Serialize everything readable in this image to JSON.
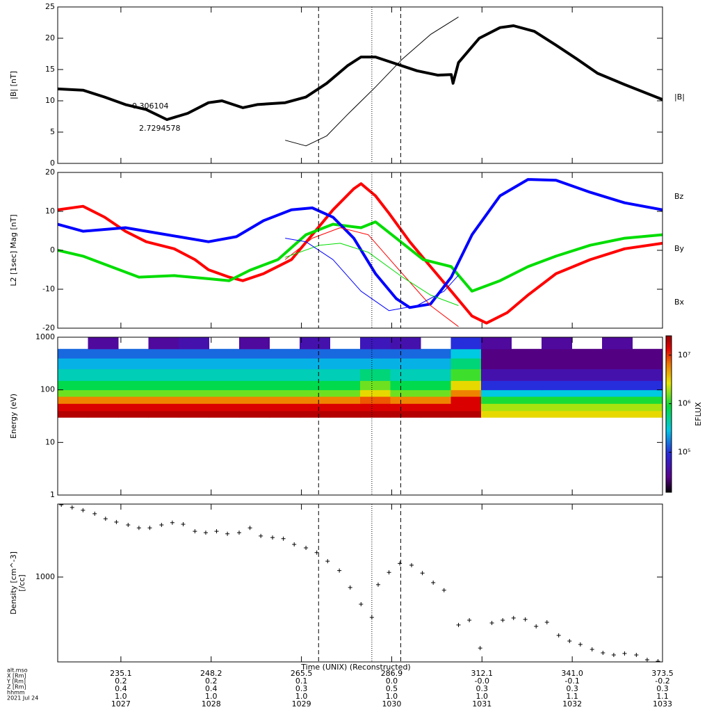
{
  "x_axis": {
    "xlim": [
      1026.3,
      1033.0
    ],
    "xticks": [
      1027,
      1028,
      1029,
      1030,
      1031,
      1032,
      1033
    ],
    "xlabel": "Time (UNIX) (Reconstructed)",
    "date": "2021 Jul 24",
    "tick_row_label": "hhmm",
    "rows": [
      {
        "label": "alt.mso",
        "values": [
          "235.1",
          "248.2",
          "265.5",
          "286.9",
          "312.1",
          "341.0",
          "373.5"
        ]
      },
      {
        "label": "X [Rm]",
        "values": [
          "0.2",
          "0.2",
          "0.1",
          "0.0",
          "-0.0",
          "-0.1",
          "-0.2"
        ]
      },
      {
        "label": "Y [Rm]",
        "values": [
          "0.4",
          "0.4",
          "0.3",
          "0.5",
          "0.3",
          "0.3",
          "0.3"
        ]
      },
      {
        "label": "Z [Rm]",
        "values": [
          "1.0",
          "1.0",
          "1.0",
          "1.0",
          "1.0",
          "1.1",
          "1.1"
        ]
      }
    ],
    "vlines": [
      {
        "x": 1029.19,
        "style": "dashed"
      },
      {
        "x": 1029.78,
        "style": "dotted"
      },
      {
        "x": 1030.1,
        "style": "dashed"
      }
    ]
  },
  "chart_data": [
    {
      "type": "line",
      "ylabel": "|B| [nT]",
      "ylim": [
        0,
        25
      ],
      "yticks": [
        0,
        5,
        10,
        15,
        20,
        25
      ],
      "annotations": [
        "0.306104",
        "2.7294578"
      ],
      "series": [
        {
          "name": "|B|",
          "color": "#000000",
          "style": "thick",
          "x": [
            1026.3,
            1026.58,
            1026.82,
            1027.05,
            1027.28,
            1027.51,
            1027.74,
            1027.97,
            1028.12,
            1028.35,
            1028.51,
            1028.82,
            1029.05,
            1029.28,
            1029.51,
            1029.66,
            1029.82,
            1030.05,
            1030.28,
            1030.51,
            1030.66,
            1030.68,
            1030.74,
            1030.97,
            1031.2,
            1031.35,
            1031.58,
            1031.82,
            1032.05,
            1032.28,
            1032.58,
            1033.0
          ],
          "values": [
            11.9,
            11.7,
            10.6,
            9.4,
            8.6,
            7.0,
            8.0,
            9.7,
            10.0,
            8.9,
            9.4,
            9.7,
            10.6,
            12.8,
            15.6,
            17.0,
            17.0,
            15.9,
            14.8,
            14.1,
            14.2,
            12.8,
            16.1,
            20.0,
            21.7,
            22.0,
            21.1,
            18.9,
            16.7,
            14.4,
            12.6,
            10.2
          ]
        },
        {
          "color": "#000000",
          "style": "thin",
          "x": [
            1028.82,
            1029.05,
            1029.28,
            1029.51,
            1029.82,
            1030.12,
            1030.43,
            1030.74
          ],
          "values": [
            3.7,
            2.8,
            4.4,
            7.8,
            12.2,
            16.7,
            20.6,
            23.4
          ]
        }
      ]
    },
    {
      "type": "line",
      "ylabel": "L2 [1sec] Mag [nT]",
      "ylim": [
        -20,
        20
      ],
      "yticks": [
        -20,
        -10,
        0,
        10,
        20
      ],
      "series": [
        {
          "name": "Bz",
          "color": "#ff0000",
          "style": "thick",
          "x": [
            1026.3,
            1026.58,
            1026.82,
            1027.05,
            1027.28,
            1027.59,
            1027.82,
            1027.97,
            1028.2,
            1028.35,
            1028.58,
            1028.89,
            1029.12,
            1029.35,
            1029.58,
            1029.66,
            1029.82,
            1029.97,
            1030.2,
            1030.43,
            1030.66,
            1030.89,
            1031.05,
            1031.28,
            1031.51,
            1031.82,
            1032.2,
            1032.58,
            1033.0
          ],
          "values": [
            10.4,
            11.3,
            8.5,
            4.9,
            2.2,
            0.4,
            -2.4,
            -5.0,
            -6.9,
            -7.8,
            -6.0,
            -2.4,
            4.0,
            10.4,
            15.8,
            17.1,
            14.0,
            9.5,
            2.2,
            -4.2,
            -10.5,
            -16.9,
            -18.7,
            -16.0,
            -11.5,
            -6.0,
            -2.4,
            0.4,
            1.8
          ]
        },
        {
          "name": "By",
          "color": "#00dd00",
          "style": "thick",
          "x": [
            1026.3,
            1026.58,
            1026.89,
            1027.2,
            1027.59,
            1027.97,
            1028.2,
            1028.43,
            1028.74,
            1029.05,
            1029.35,
            1029.66,
            1029.82,
            1030.05,
            1030.35,
            1030.66,
            1030.89,
            1031.2,
            1031.51,
            1031.82,
            1032.2,
            1032.58,
            1033.0
          ],
          "values": [
            0,
            -1.5,
            -4.2,
            -6.9,
            -6.5,
            -7.3,
            -7.8,
            -5.1,
            -2.4,
            4.0,
            6.7,
            5.8,
            7.3,
            3.1,
            -2.4,
            -4.2,
            -10.5,
            -7.8,
            -4.2,
            -1.5,
            1.3,
            3.1,
            4.0
          ]
        },
        {
          "name": "Bx",
          "color": "#0000ff",
          "style": "thick",
          "x": [
            1026.3,
            1026.58,
            1027.05,
            1027.51,
            1027.97,
            1028.28,
            1028.58,
            1028.89,
            1029.12,
            1029.35,
            1029.58,
            1029.82,
            1030.05,
            1030.2,
            1030.43,
            1030.66,
            1030.89,
            1031.2,
            1031.51,
            1031.82,
            1032.2,
            1032.58,
            1033.0
          ],
          "values": [
            6.7,
            4.9,
            5.8,
            4.0,
            2.2,
            3.5,
            7.6,
            10.4,
            10.9,
            8.5,
            3.1,
            -6.0,
            -12.4,
            -14.7,
            -13.8,
            -6.9,
            4.0,
            14.0,
            18.2,
            18.0,
            14.9,
            12.2,
            10.4
          ]
        },
        {
          "color": "#ff0000",
          "style": "thin",
          "x": [
            1028.82,
            1029.12,
            1029.43,
            1029.74,
            1030.05,
            1030.43,
            1030.74
          ],
          "values": [
            -2.4,
            3.1,
            5.8,
            4.0,
            -4.2,
            -14.2,
            -19.6
          ]
        },
        {
          "color": "#00dd00",
          "style": "thin",
          "x": [
            1028.82,
            1029.2,
            1029.43,
            1029.74,
            1030.12,
            1030.43,
            1030.74
          ],
          "values": [
            -1.8,
            1.3,
            1.8,
            -0.5,
            -6.9,
            -11.5,
            -14.2
          ]
        },
        {
          "color": "#0000ff",
          "style": "thin",
          "x": [
            1028.82,
            1029.05,
            1029.35,
            1029.66,
            1029.97,
            1030.28,
            1030.58,
            1030.74
          ],
          "values": [
            3.1,
            2.2,
            -2.4,
            -10.5,
            -15.5,
            -14.2,
            -10.5,
            -6.4
          ]
        }
      ]
    },
    {
      "type": "heatmap",
      "ylabel": "Energy (eV)",
      "ylim": [
        1,
        1000
      ],
      "ylog": true,
      "yticks": [
        1,
        10,
        100,
        1000
      ],
      "clabel": "EFLUX",
      "clim": [
        15000,
        25000000
      ],
      "cticks": [
        {
          "value": 100000,
          "label": "10⁵"
        },
        {
          "value": 1000000,
          "label": "10⁶"
        },
        {
          "value": 10000000,
          "label": "10⁷"
        }
      ],
      "x_edges": [
        1026.3,
        1026.635,
        1026.97,
        1027.305,
        1027.64,
        1027.975,
        1028.31,
        1028.645,
        1028.98,
        1029.315,
        1029.65,
        1029.985,
        1030.32,
        1030.655,
        1030.99,
        1031.325,
        1031.66,
        1031.995,
        1032.33,
        1032.665,
        1033.0
      ],
      "y_edges": [
        30,
        40,
        55,
        75,
        100,
        150,
        250,
        400,
        600,
        1000
      ],
      "z": [
        [
          20000000,
          20000000,
          20000000,
          20000000,
          20000000,
          20000000,
          20000000,
          20000000,
          20000000,
          20000000,
          20000000,
          20000000,
          20000000,
          20000000,
          3000000,
          3000000,
          3000000,
          3000000,
          3000000,
          3000000
        ],
        [
          15000000,
          15000000,
          15000000,
          15000000,
          15000000,
          15000000,
          15000000,
          15000000,
          15000000,
          15000000,
          15000000,
          15000000,
          15000000,
          15000000,
          2000000,
          2000000,
          2000000,
          2000000,
          2000000,
          2000000
        ],
        [
          6000000,
          6000000,
          6000000,
          6000000,
          6000000,
          6000000,
          6000000,
          6000000,
          6000000,
          6000000,
          8000000,
          6000000,
          6000000,
          15000000,
          1000000,
          1000000,
          1000000,
          1000000,
          1000000,
          1000000
        ],
        [
          1500000,
          1500000,
          1500000,
          1500000,
          1500000,
          1500000,
          1500000,
          1500000,
          1500000,
          1500000,
          3000000,
          1500000,
          1500000,
          6000000,
          300000,
          300000,
          300000,
          300000,
          300000,
          300000
        ],
        [
          800000,
          800000,
          800000,
          800000,
          800000,
          800000,
          800000,
          800000,
          800000,
          800000,
          1500000,
          800000,
          800000,
          3000000,
          100000,
          100000,
          100000,
          100000,
          100000,
          100000
        ],
        [
          400000,
          400000,
          400000,
          400000,
          400000,
          400000,
          400000,
          400000,
          400000,
          400000,
          600000,
          400000,
          400000,
          1200000,
          50000,
          50000,
          50000,
          50000,
          50000,
          50000
        ],
        [
          250000,
          250000,
          250000,
          250000,
          250000,
          250000,
          250000,
          250000,
          250000,
          250000,
          250000,
          250000,
          250000,
          600000,
          30000,
          30000,
          30000,
          30000,
          30000,
          30000
        ],
        [
          150000,
          150000,
          150000,
          150000,
          150000,
          150000,
          150000,
          150000,
          150000,
          150000,
          150000,
          150000,
          150000,
          300000,
          30000,
          30000,
          30000,
          30000,
          30000,
          30000
        ],
        [
          null,
          40000,
          null,
          40000,
          50000,
          null,
          40000,
          null,
          50000,
          null,
          60000,
          50000,
          null,
          100000,
          40000,
          null,
          40000,
          null,
          40000,
          null
        ]
      ]
    },
    {
      "type": "scatter",
      "ylabel": [
        "Density [cm^-3]",
        "[/cc]"
      ],
      "ylim": [
        290,
        2900
      ],
      "ylog": true,
      "yticks": [
        1000
      ],
      "color": "#000000",
      "x": [
        1026.34,
        1026.46,
        1026.58,
        1026.71,
        1026.83,
        1026.95,
        1027.08,
        1027.2,
        1027.32,
        1027.45,
        1027.57,
        1027.69,
        1027.82,
        1027.94,
        1028.06,
        1028.18,
        1028.31,
        1028.43,
        1028.55,
        1028.68,
        1028.8,
        1028.92,
        1029.05,
        1029.17,
        1029.29,
        1029.42,
        1029.54,
        1029.66,
        1029.78,
        1029.85,
        1029.97,
        1030.09,
        1030.22,
        1030.34,
        1030.46,
        1030.58,
        1030.74,
        1030.86,
        1030.98,
        1031.11,
        1031.23,
        1031.35,
        1031.48,
        1031.6,
        1031.72,
        1031.85,
        1031.97,
        1032.09,
        1032.22,
        1032.34,
        1032.46,
        1032.58,
        1032.71,
        1032.83,
        1032.95
      ],
      "values": [
        2870,
        2760,
        2650,
        2520,
        2340,
        2230,
        2140,
        2050,
        2050,
        2140,
        2210,
        2160,
        1950,
        1910,
        1950,
        1880,
        1910,
        2050,
        1820,
        1780,
        1750,
        1610,
        1530,
        1430,
        1260,
        1100,
        859,
        673,
        555,
        895,
        1070,
        1220,
        1190,
        1060,
        922,
        825,
        497,
        533,
        355,
        512,
        533,
        550,
        539,
        487,
        517,
        427,
        393,
        374,
        348,
        331,
        321,
        328,
        321,
        299,
        293
      ]
    }
  ]
}
